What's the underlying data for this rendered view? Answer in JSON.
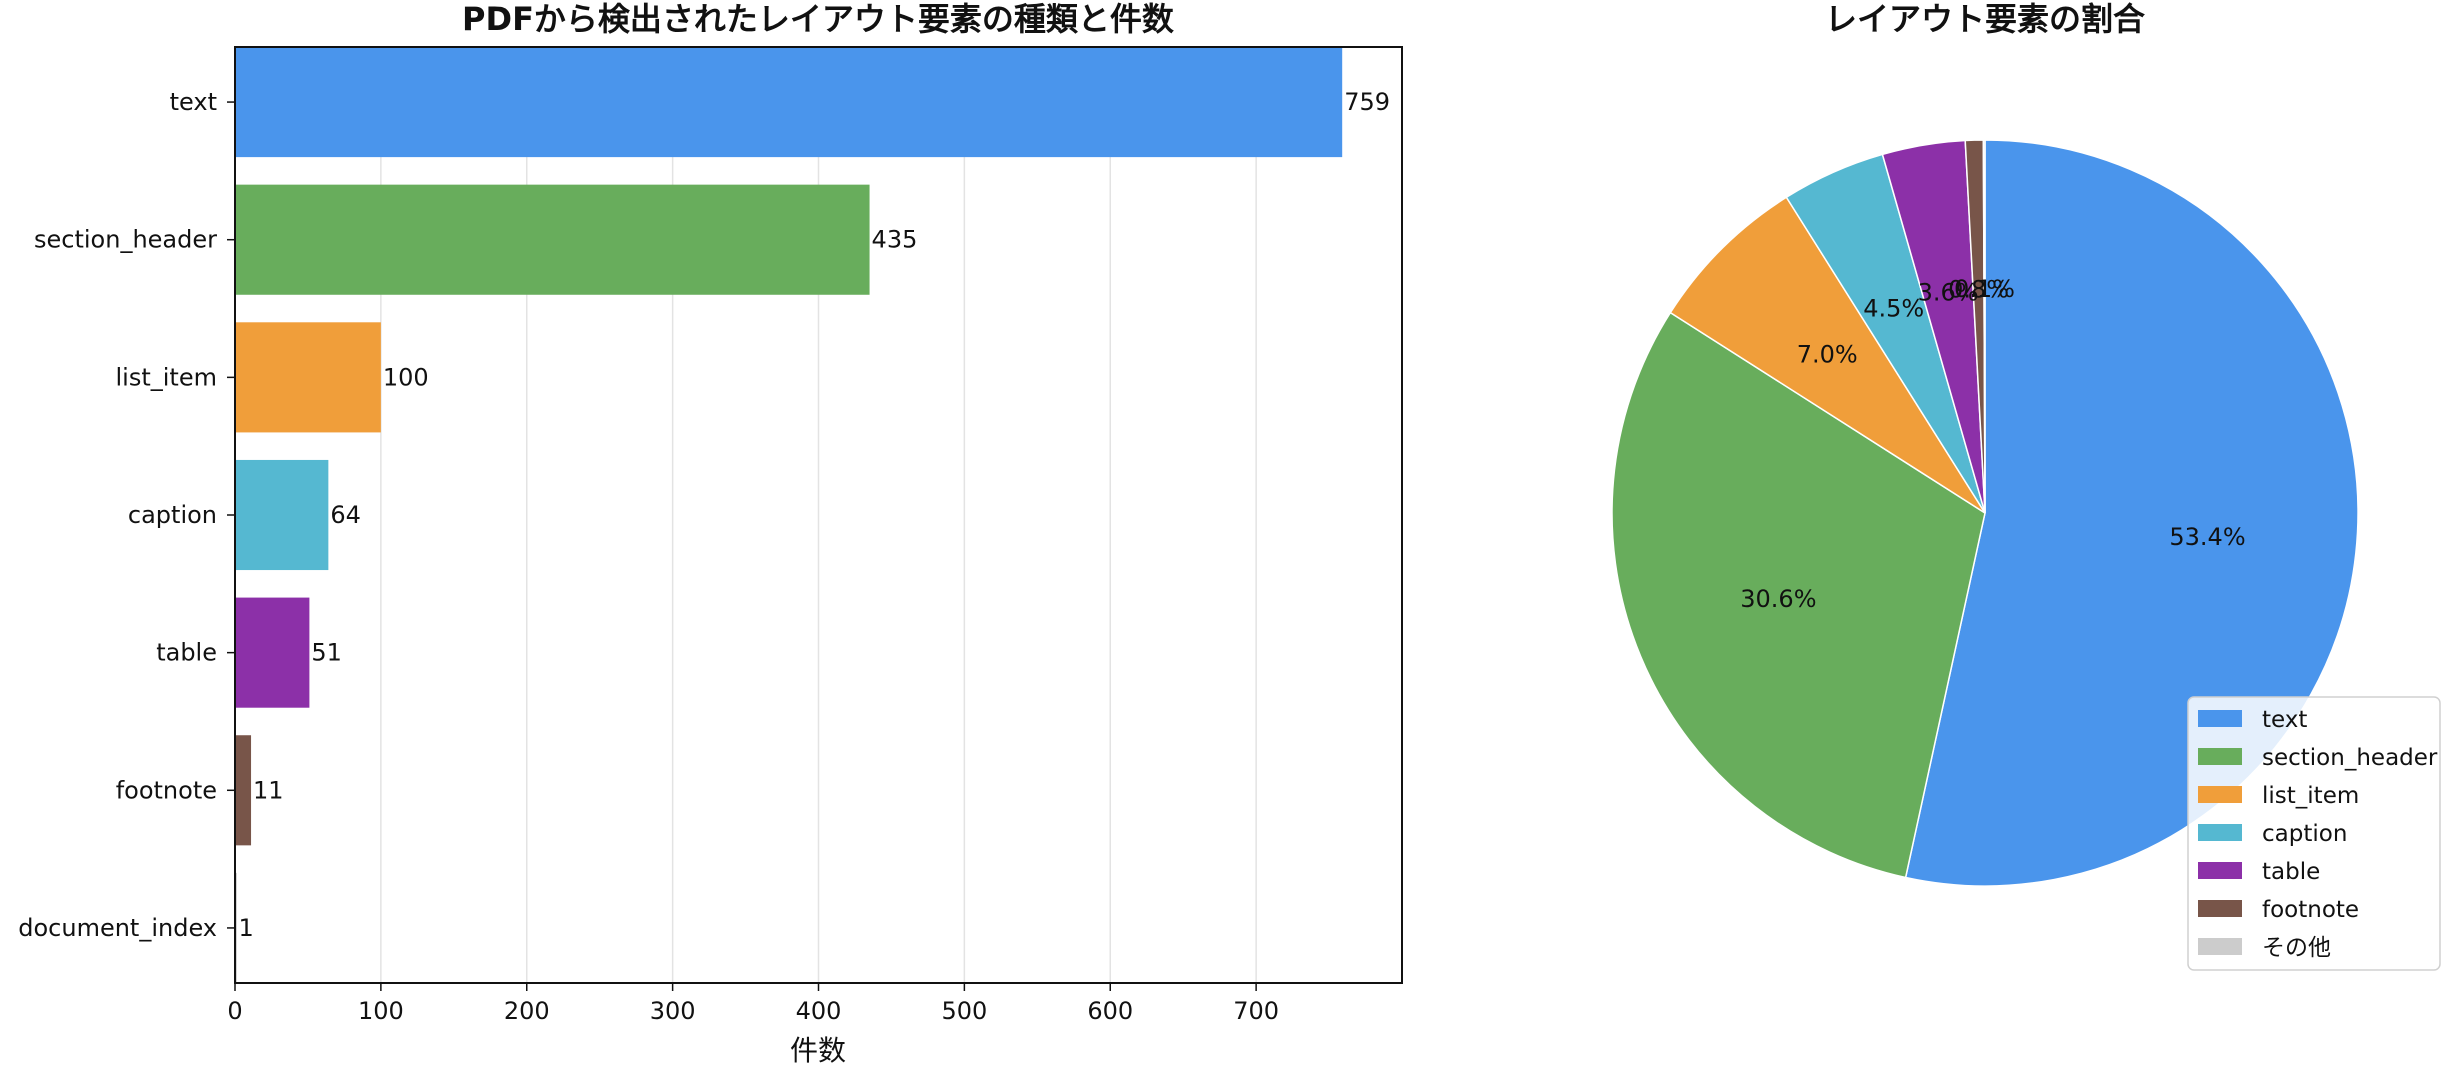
{
  "chart_data": [
    {
      "type": "bar",
      "orientation": "horizontal",
      "title": "PDFから検出されたレイアウト要素の種類と件数",
      "xlabel": "件数",
      "ylabel": "",
      "xlim": [
        0,
        800
      ],
      "xticks": [
        0,
        100,
        200,
        300,
        400,
        500,
        600,
        700
      ],
      "grid": "vertical",
      "categories": [
        "text",
        "section_header",
        "list_item",
        "caption",
        "table",
        "footnote",
        "document_index"
      ],
      "values": [
        759,
        435,
        100,
        64,
        51,
        11,
        1
      ],
      "colors": [
        "#4a95ec",
        "#68ad5c",
        "#f09e3a",
        "#55b8d1",
        "#8c30a8",
        "#785549",
        "#a0a0a0"
      ]
    },
    {
      "type": "pie",
      "title": "レイアウト要素の割合",
      "start_angle": 90,
      "direction": "clockwise",
      "labels": [
        "text",
        "section_header",
        "list_item",
        "caption",
        "table",
        "footnote",
        "その他"
      ],
      "values": [
        759,
        435,
        100,
        64,
        51,
        11,
        1
      ],
      "percent_labels": [
        "53.4%",
        "30.6%",
        "7.0%",
        "4.5%",
        "3.6%",
        "0.8%",
        "0.1%"
      ],
      "colors": [
        "#4a95ec",
        "#68ad5c",
        "#f09e3a",
        "#55b8d1",
        "#8c30a8",
        "#785549",
        "#cccccc"
      ],
      "legend": "lower-right"
    }
  ]
}
